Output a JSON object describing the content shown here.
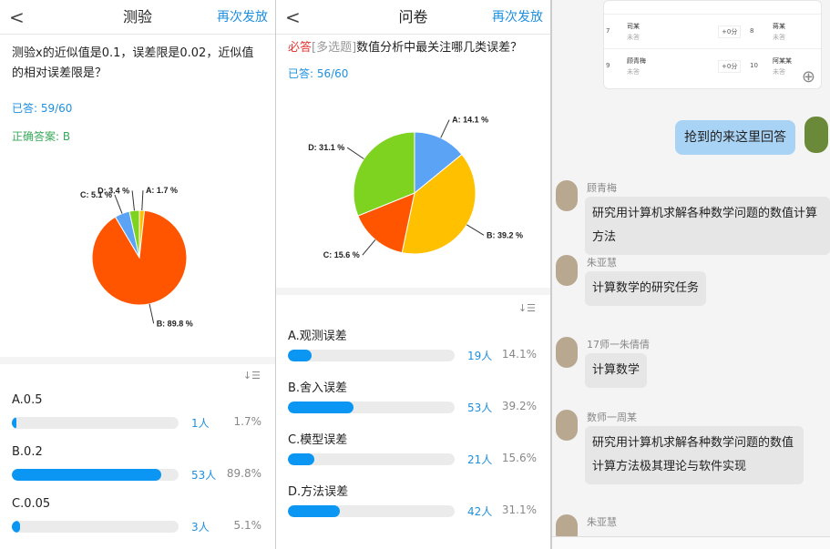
{
  "quiz": {
    "title": "测验",
    "back": "<",
    "resend": "再次发放",
    "question": "测验x的近似值是0.1，误差限是0.02，近似值的相对误差限是？",
    "answered": "已答: 59/60",
    "correct": "正确答案: B",
    "sort_icon": "sort-icon",
    "options": [
      {
        "label": "A.0.5",
        "count": "1人",
        "pct": "1.7%",
        "value": 1.7
      },
      {
        "label": "B.0.2",
        "count": "53人",
        "pct": "89.8%",
        "value": 89.8,
        "correct": true
      },
      {
        "label": "C.0.05",
        "count": "3人",
        "pct": "5.1%",
        "value": 5.1
      }
    ]
  },
  "survey": {
    "title": "问卷",
    "back": "<",
    "resend": "再次发放",
    "required": "必答",
    "type": "[多选题]",
    "question": "数值分析中最关注哪几类误差？",
    "answered": "已答: 56/60",
    "sort_icon": "sort-icon",
    "options": [
      {
        "label": "A.观测误差",
        "count": "19人",
        "pct": "14.1%",
        "value": 14.1
      },
      {
        "label": "B.舍入误差",
        "count": "53人",
        "pct": "39.2%",
        "value": 39.2
      },
      {
        "label": "C.模型误差",
        "count": "21人",
        "pct": "15.6%",
        "value": 15.6
      },
      {
        "label": "D.方法误差",
        "count": "42人",
        "pct": "31.1%",
        "value": 31.1
      }
    ]
  },
  "chart_data": [
    {
      "type": "pie",
      "labels": [
        "A: 1.7 %",
        "B: 89.8 %",
        "C: 5.1 %",
        "D: 3.4 %"
      ],
      "values": [
        1.7,
        89.8,
        5.1,
        3.4
      ],
      "colors": [
        "#ffc000",
        "#ff5500",
        "#5ba3f5",
        "#7ed321"
      ]
    },
    {
      "type": "pie",
      "labels": [
        "A: 14.1 %",
        "B: 39.2 %",
        "C: 15.6 %",
        "D: 31.1 %"
      ],
      "values": [
        14.1,
        39.2,
        15.6,
        31.1
      ],
      "colors": [
        "#5ba3f5",
        "#ffc000",
        "#ff5500",
        "#7ed321"
      ]
    }
  ],
  "chat": {
    "table_rows": [
      {
        "no": "7",
        "name": "司某",
        "status": "未答",
        "score": "+0分",
        "no2": "8",
        "name2": "蒋某",
        "status2": "未答"
      },
      {
        "no": "9",
        "name": "顾青梅",
        "status": "未答",
        "score": "+0分",
        "no2": "10",
        "name2": "阿某某",
        "status2": "未答"
      }
    ],
    "messages": [
      {
        "sender": "",
        "text": "抢到的来这里回答",
        "self": true
      },
      {
        "sender": "顾青梅",
        "text": "研究用计算机求解各种数学问题的数值计算方法"
      },
      {
        "sender": "朱亚慧",
        "text": "计算数学的研究任务"
      },
      {
        "sender": "17师一朱倩倩",
        "text": "计算数学"
      },
      {
        "sender": "数师一周某",
        "text": "研究用计算机求解各种数学问题的数值计算方法极其理论与软件实现"
      },
      {
        "sender": "朱亚慧",
        "text": ""
      }
    ]
  }
}
